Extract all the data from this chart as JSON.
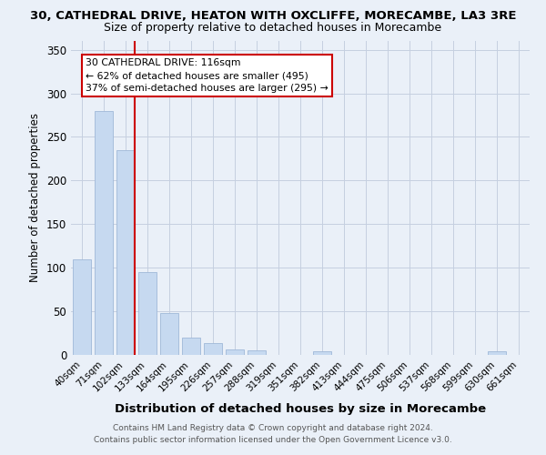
{
  "title": "30, CATHEDRAL DRIVE, HEATON WITH OXCLIFFE, MORECAMBE, LA3 3RE",
  "subtitle": "Size of property relative to detached houses in Morecambe",
  "xlabel": "Distribution of detached houses by size in Morecambe",
  "ylabel": "Number of detached properties",
  "categories": [
    "40sqm",
    "71sqm",
    "102sqm",
    "133sqm",
    "164sqm",
    "195sqm",
    "226sqm",
    "257sqm",
    "288sqm",
    "319sqm",
    "351sqm",
    "382sqm",
    "413sqm",
    "444sqm",
    "475sqm",
    "506sqm",
    "537sqm",
    "568sqm",
    "599sqm",
    "630sqm",
    "661sqm"
  ],
  "values": [
    110,
    280,
    235,
    95,
    48,
    20,
    14,
    6,
    5,
    0,
    0,
    4,
    0,
    0,
    0,
    0,
    0,
    0,
    0,
    4,
    0
  ],
  "bar_color": "#c6d9f0",
  "bar_edge_color": "#a0b8d8",
  "vline_x_index": 2,
  "vline_color": "#cc0000",
  "ylim": [
    0,
    360
  ],
  "yticks": [
    0,
    50,
    100,
    150,
    200,
    250,
    300,
    350
  ],
  "annotation_title": "30 CATHEDRAL DRIVE: 116sqm",
  "annotation_line1": "← 62% of detached houses are smaller (495)",
  "annotation_line2": "37% of semi-detached houses are larger (295) →",
  "annotation_box_color": "#ffffff",
  "annotation_box_edge": "#cc0000",
  "footer1": "Contains HM Land Registry data © Crown copyright and database right 2024.",
  "footer2": "Contains public sector information licensed under the Open Government Licence v3.0.",
  "bg_color": "#eaf0f8",
  "plot_bg_color": "#eaf0f8"
}
